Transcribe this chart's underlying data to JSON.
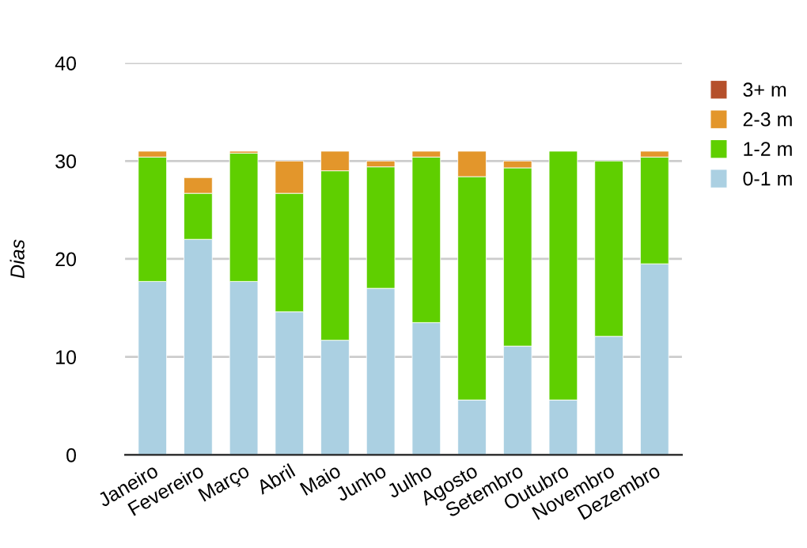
{
  "chart_data": {
    "type": "bar",
    "stacked": true,
    "ylabel": "Dias",
    "categories": [
      "Janeiro",
      "Fevereiro",
      "Março",
      "Abril",
      "Maio",
      "Junho",
      "Julho",
      "Agosto",
      "Setembro",
      "Outubro",
      "Novembro",
      "Dezembro"
    ],
    "series": [
      {
        "name": "0-1 m",
        "color": "#abd0e2",
        "values": [
          17.7,
          22,
          17.7,
          14.6,
          11.7,
          17,
          13.5,
          5.6,
          11.1,
          5.6,
          12.1,
          19.5
        ]
      },
      {
        "name": "1-2 m",
        "color": "#5fcf00",
        "values": [
          12.7,
          4.7,
          13.1,
          12.1,
          17.3,
          12.4,
          16.9,
          22.8,
          18.2,
          25.4,
          17.9,
          10.9
        ]
      },
      {
        "name": "2-3 m",
        "color": "#e3962b",
        "values": [
          0.6,
          1.6,
          0.2,
          3.3,
          2,
          0.6,
          0.6,
          2.6,
          0.7,
          0,
          0,
          0.6
        ]
      },
      {
        "name": "3+ m",
        "color": "#b5502b",
        "values": [
          null,
          null,
          null,
          null,
          null,
          null,
          null,
          null,
          null,
          null,
          null,
          null
        ]
      }
    ],
    "ylim": [
      0,
      40
    ],
    "yticks": [
      0,
      10,
      20,
      30,
      40
    ],
    "grid": "y",
    "legend": "top right"
  }
}
